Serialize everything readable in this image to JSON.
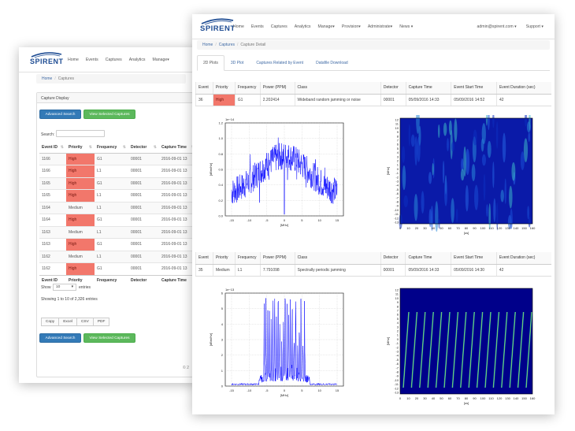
{
  "back": {
    "brand": "SPIRENT",
    "nav": [
      "Home",
      "Events",
      "Captures",
      "Analytics",
      "Manage▾"
    ],
    "breadcrumb": [
      "Home",
      "Captures"
    ],
    "panel_title": "Capture Display",
    "btn_search": "Advanced Search",
    "btn_view": "View Selected Captures",
    "search_label": "Search:",
    "columns": [
      "Event ID",
      "Priority",
      "Frequency",
      "Detector",
      "Capture Time"
    ],
    "rows": [
      [
        "1166",
        "High",
        "G1",
        "00001",
        "2016-09-01 13"
      ],
      [
        "1166",
        "High",
        "L1",
        "00001",
        "2016-09-01 13"
      ],
      [
        "1165",
        "High",
        "G1",
        "00001",
        "2016-09-01 13"
      ],
      [
        "1165",
        "High",
        "L1",
        "00001",
        "2016-09-01 13"
      ],
      [
        "1164",
        "Medium",
        "L1",
        "00001",
        "2016-09-01 13"
      ],
      [
        "1164",
        "High",
        "G1",
        "00001",
        "2016-09-01 13"
      ],
      [
        "1163",
        "Medium",
        "L1",
        "00001",
        "2016-09-01 13"
      ],
      [
        "1163",
        "High",
        "G1",
        "00001",
        "2016-09-01 13"
      ],
      [
        "1162",
        "Medium",
        "L1",
        "00001",
        "2016-09-01 13"
      ],
      [
        "1162",
        "High",
        "G1",
        "00001",
        "2016-09-01 13"
      ]
    ],
    "show_label": "Show",
    "show_value": "10",
    "entries_label": "entries",
    "info": "Showing 1 to 10 of 2,326 entries",
    "export": [
      "Copy",
      "Excel",
      "CSV",
      "PDF"
    ],
    "footer": "© 2"
  },
  "front": {
    "brand": "SPIRENT",
    "nav": [
      "Home",
      "Events",
      "Captures",
      "Analytics",
      "Manage▾",
      "Provision▾",
      "Administrate▾",
      "News ▾"
    ],
    "user": "admin@spirent.com ▾",
    "support": "Support ▾",
    "breadcrumb": [
      "Home",
      "Captures",
      "Capture Detail"
    ],
    "tabs": [
      "2D Plots",
      "3D Plot",
      "Captures Related by Event",
      "Datafile Download"
    ],
    "event_columns": [
      "Event",
      "Priority",
      "Frequency",
      "Power (PPM)",
      "Class",
      "Detector",
      "Capture Time",
      "Event Start Time",
      "Event Duration (sec)"
    ],
    "events": [
      {
        "event": "36",
        "priority": "High",
        "frequency": "G1",
        "power": "2.202414",
        "class": "Wideband random jamming or noise",
        "detector": "00001",
        "capture_time": "05/09/2016 14:33",
        "start_time": "05/09/2016 14:52",
        "duration": "42"
      },
      {
        "event": "35",
        "priority": "Medium",
        "frequency": "L1",
        "power": "7.791098",
        "class": "Spectrally periodic jamming",
        "detector": "00001",
        "capture_time": "05/09/2016 14:33",
        "start_time": "05/09/2016 14:30",
        "duration": "42"
      }
    ],
    "plots": {
      "spectrum_xticks": [
        "-15",
        "-10",
        "-5",
        "0",
        "5",
        "10",
        "15"
      ],
      "spectrum_xlabel": "[MHz]",
      "spectrum_ylabel": "[dBm/Hz]",
      "spectrum1_exp": "1e−14",
      "spectrum1_yticks": [
        "0.0",
        "0.2",
        "0.4",
        "0.6",
        "0.8",
        "1.0",
        "1.2"
      ],
      "spectrum2_exp": "1e−13",
      "spectrum2_yticks": [
        "0",
        "1",
        "2",
        "3",
        "4",
        "5",
        "6"
      ],
      "wf_xticks": [
        "0",
        "10",
        "20",
        "30",
        "40",
        "50",
        "60",
        "70",
        "80",
        "90",
        "100",
        "110",
        "120",
        "130",
        "140",
        "150",
        "160"
      ],
      "wf_xlabel": "[us]",
      "wf_ylabel": "[MHz]",
      "wf_yticks": [
        "12",
        "11",
        "10",
        "9",
        "8",
        "7",
        "6",
        "5",
        "4",
        "3",
        "2",
        "1",
        "0",
        "-1",
        "-2",
        "-3",
        "-4",
        "-5",
        "-6",
        "-7",
        "-8",
        "-9",
        "-10",
        "-11",
        "-12",
        "-13"
      ]
    },
    "colors": {
      "high": "#f2776b",
      "brand": "#1e4c93",
      "primary": "#337ab7",
      "success": "#5cb85c",
      "trace": "#0000ff"
    }
  }
}
